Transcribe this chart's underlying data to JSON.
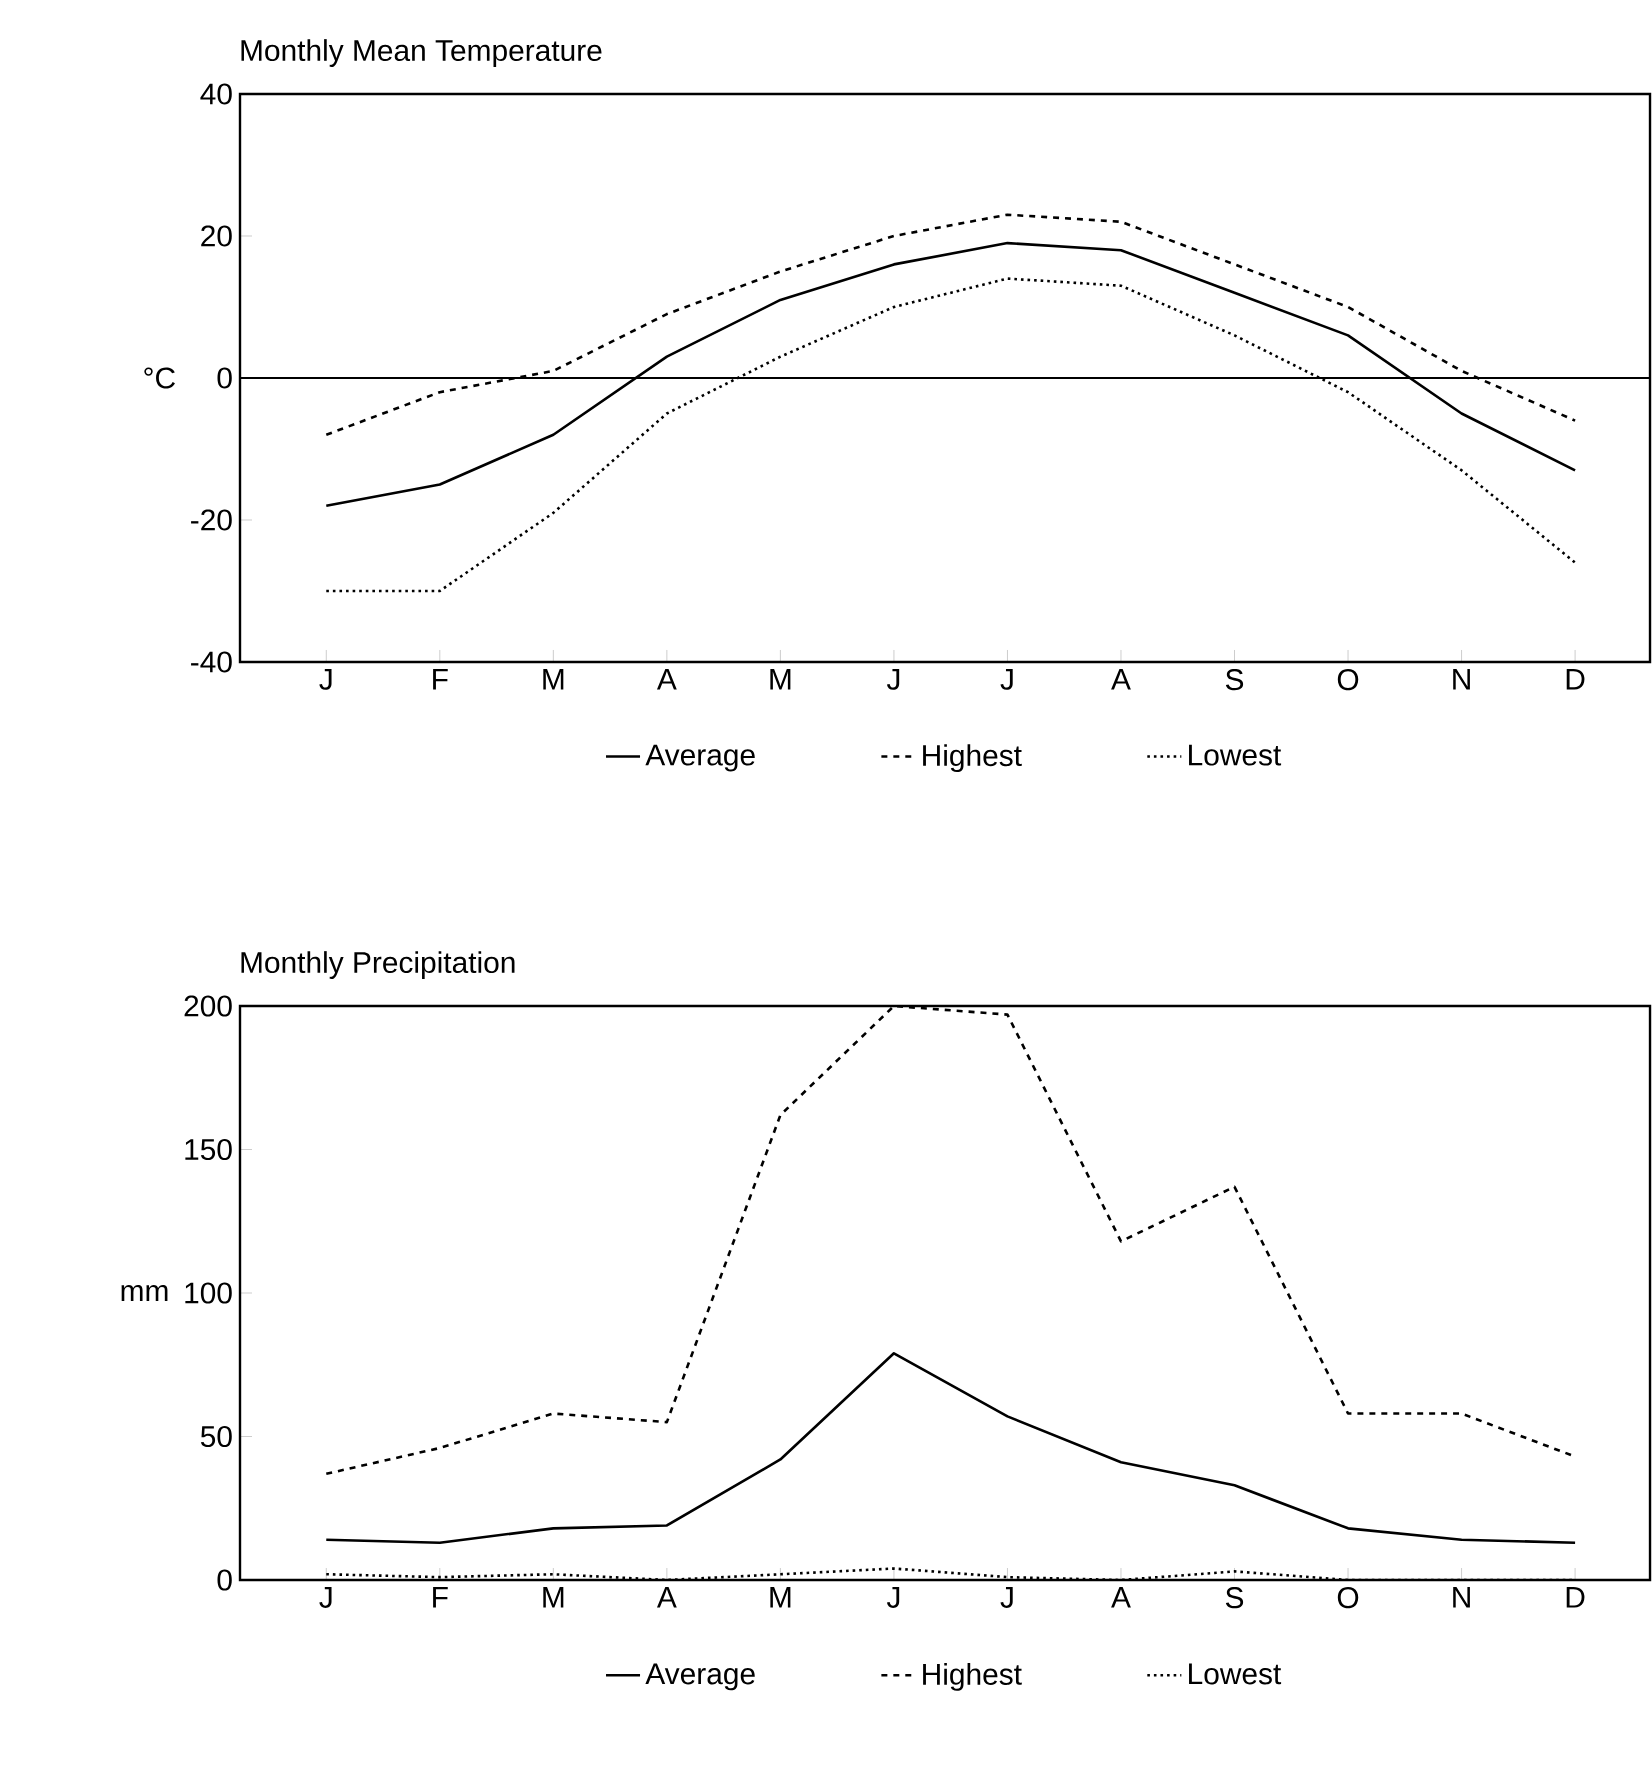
{
  "chart_data": [
    {
      "type": "line",
      "title": "Monthly Mean Temperature",
      "ylabel": "°C",
      "categories": [
        "J",
        "F",
        "M",
        "A",
        "M",
        "J",
        "J",
        "A",
        "S",
        "O",
        "N",
        "D"
      ],
      "ylim": [
        -40,
        40
      ],
      "yticks": [
        -40,
        -20,
        0,
        20,
        40
      ],
      "legend": "bottom",
      "marker": "none",
      "grid": false,
      "ref_lines": [
        {
          "axis": "y",
          "value": 0
        }
      ],
      "series": [
        {
          "name": "Average",
          "color": "#000000",
          "line_style": "solid",
          "values": [
            -18,
            -15,
            -8,
            3,
            11,
            16,
            19,
            18,
            12,
            6,
            -5,
            -13
          ]
        },
        {
          "name": "Highest",
          "color": "#000000",
          "line_style": "dashed",
          "values": [
            -8,
            -2,
            1,
            9,
            15,
            20,
            23,
            22,
            16,
            10,
            1,
            -6
          ]
        },
        {
          "name": "Lowest",
          "color": "#000000",
          "line_style": "dotted",
          "values": [
            -30,
            -30,
            -19,
            -5,
            3,
            10,
            14,
            13,
            6,
            -2,
            -13,
            -26
          ]
        }
      ]
    },
    {
      "type": "line",
      "title": "Monthly Precipitation",
      "ylabel": "mm",
      "categories": [
        "J",
        "F",
        "M",
        "A",
        "M",
        "J",
        "J",
        "A",
        "S",
        "O",
        "N",
        "D"
      ],
      "ylim": [
        0,
        200
      ],
      "yticks": [
        0,
        50,
        100,
        150,
        200
      ],
      "legend": "bottom",
      "marker": "none",
      "grid": false,
      "series": [
        {
          "name": "Average",
          "color": "#000000",
          "line_style": "solid",
          "values": [
            14,
            13,
            18,
            19,
            42,
            79,
            57,
            41,
            33,
            18,
            14,
            13
          ]
        },
        {
          "name": "Highest",
          "color": "#000000",
          "line_style": "dashed",
          "values": [
            37,
            46,
            58,
            55,
            162,
            200,
            197,
            118,
            137,
            58,
            58,
            43
          ]
        },
        {
          "name": "Lowest",
          "color": "#000000",
          "line_style": "dotted",
          "values": [
            2,
            1,
            2,
            0,
            2,
            4,
            1,
            0,
            3,
            0,
            0,
            0
          ]
        }
      ]
    }
  ]
}
